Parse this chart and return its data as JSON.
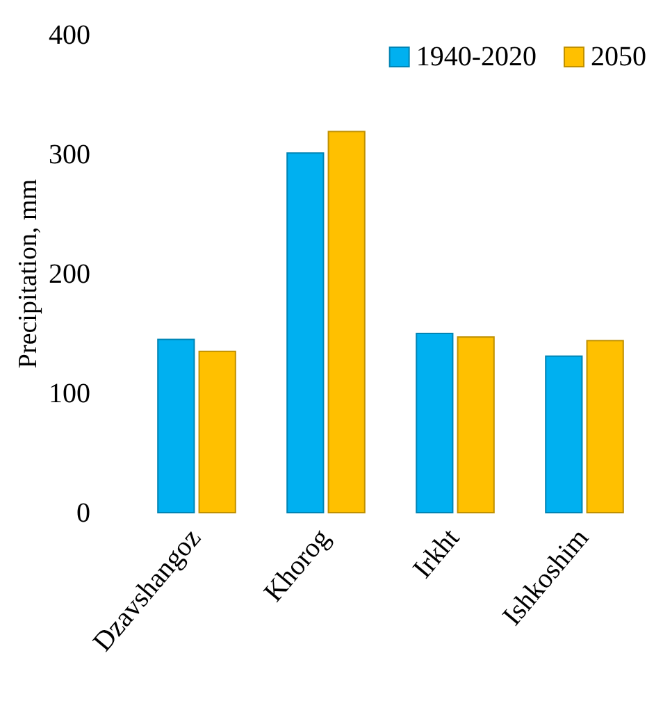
{
  "chart_data": {
    "type": "bar",
    "ylabel": "Precipitation,  mm",
    "categories": [
      "Dzavshangoz",
      "Khorog",
      "Irkht",
      "Ishkoshim"
    ],
    "series": [
      {
        "name": "1940-2020",
        "color": "#00b0f0",
        "values": [
          145,
          301,
          150,
          131
        ]
      },
      {
        "name": "2050",
        "color": "#ffc000",
        "values": [
          135,
          319,
          147,
          144
        ]
      }
    ],
    "ylim": [
      0,
      400
    ],
    "yticks": [
      0,
      100,
      200,
      300,
      400
    ],
    "legend": "top right"
  }
}
